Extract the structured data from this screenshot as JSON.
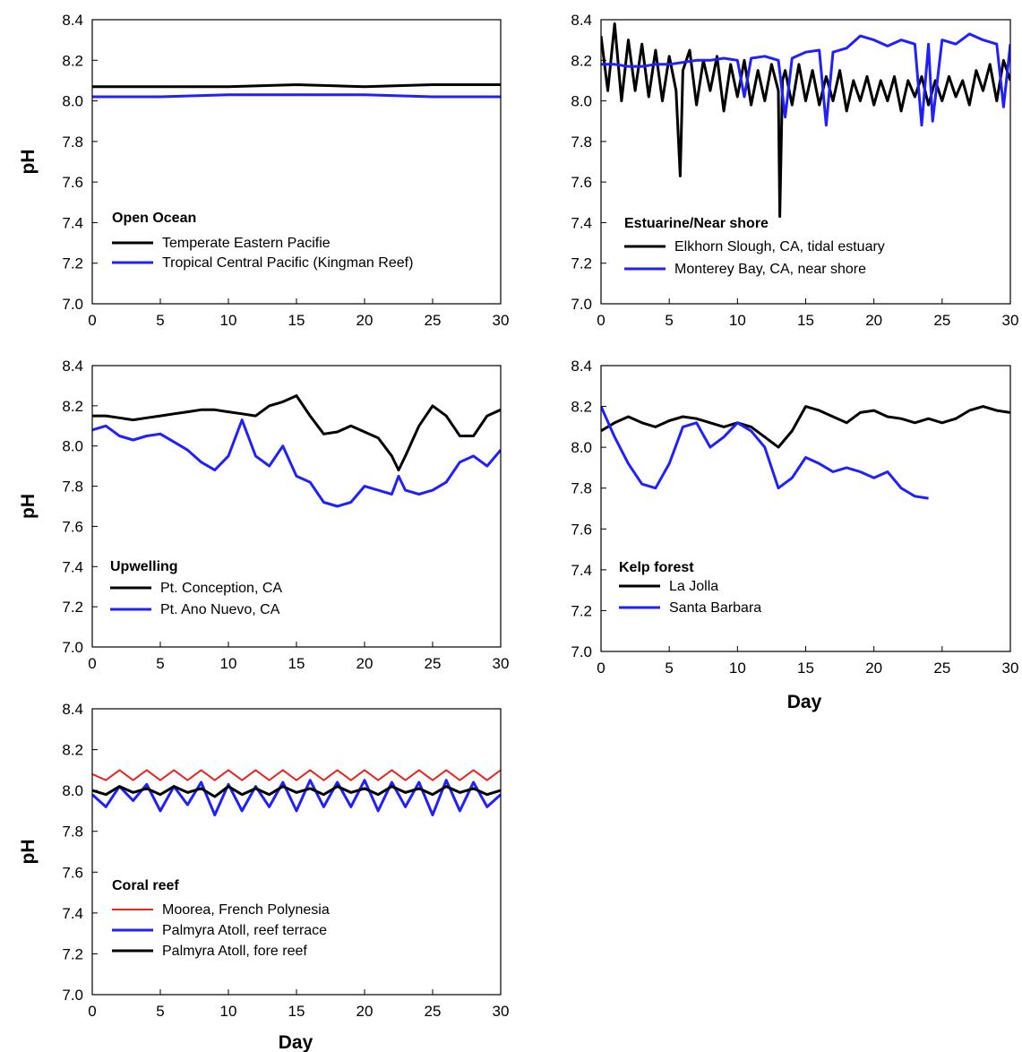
{
  "figure": {
    "y_axis_title": "pH",
    "x_axis_title": "Day",
    "colors": {
      "black": "#000000",
      "blue": "#1f1fff",
      "red": "#e8251f"
    }
  },
  "chart_data": [
    {
      "type": "line",
      "title": "Open Ocean",
      "ylabel": "pH",
      "xlabel": "",
      "xlim": [
        0,
        30
      ],
      "ylim": [
        7.0,
        8.4
      ],
      "xticks": [
        "0",
        "5",
        "10",
        "15",
        "20",
        "25",
        "30"
      ],
      "yticks": [
        "7.0",
        "7.2",
        "7.4",
        "7.6",
        "7.8",
        "8.0",
        "8.2",
        "8.4"
      ],
      "grid": false,
      "legend_position": "lower-left",
      "series": [
        {
          "name": "Temperate Eastern Pacifie",
          "color": "#000000",
          "x": [
            0,
            5,
            10,
            15,
            20,
            25,
            30
          ],
          "values": [
            8.07,
            8.07,
            8.07,
            8.08,
            8.07,
            8.08,
            8.08
          ]
        },
        {
          "name": "Tropical Central Pacific (Kingman Reef)",
          "color": "#1f1fff",
          "x": [
            0,
            5,
            10,
            15,
            20,
            25,
            30
          ],
          "values": [
            8.02,
            8.02,
            8.03,
            8.03,
            8.03,
            8.02,
            8.02
          ]
        }
      ]
    },
    {
      "type": "line",
      "title": "Estuarine/Near shore",
      "ylabel": "",
      "xlabel": "",
      "xlim": [
        0,
        30
      ],
      "ylim": [
        7.0,
        8.4
      ],
      "xticks": [
        "0",
        "5",
        "10",
        "15",
        "20",
        "25",
        "30"
      ],
      "yticks": [
        "7.0",
        "7.2",
        "7.4",
        "7.6",
        "7.8",
        "8.0",
        "8.2",
        "8.4"
      ],
      "grid": false,
      "legend_position": "lower-left",
      "series": [
        {
          "name": "Elkhorn Slough, CA, tidal estuary",
          "color": "#000000",
          "x": [
            0,
            0.5,
            1,
            1.5,
            2,
            2.5,
            3,
            3.5,
            4,
            4.5,
            5,
            5.5,
            5.8,
            6,
            6.5,
            7,
            7.5,
            8,
            8.5,
            9,
            9.5,
            10,
            10.5,
            11,
            11.5,
            12,
            12.5,
            13,
            13.1,
            13.3,
            13.5,
            14,
            14.5,
            15,
            15.5,
            16,
            16.5,
            17,
            17.5,
            18,
            18.5,
            19,
            19.5,
            20,
            20.5,
            21,
            21.5,
            22,
            22.5,
            23,
            23.5,
            24,
            24.5,
            25,
            25.5,
            26,
            26.5,
            27,
            27.5,
            28,
            28.5,
            29,
            29.5,
            30
          ],
          "values": [
            8.32,
            8.05,
            8.38,
            8.0,
            8.3,
            8.05,
            8.28,
            8.02,
            8.25,
            8.0,
            8.22,
            8.05,
            7.63,
            8.15,
            8.25,
            7.98,
            8.2,
            8.05,
            8.22,
            7.95,
            8.18,
            8.02,
            8.2,
            7.98,
            8.15,
            8.0,
            8.18,
            8.05,
            7.43,
            8.1,
            8.15,
            7.98,
            8.18,
            8.0,
            8.15,
            7.98,
            8.12,
            8.0,
            8.15,
            7.95,
            8.1,
            8.0,
            8.12,
            7.98,
            8.1,
            8.0,
            8.12,
            7.95,
            8.1,
            8.02,
            8.12,
            7.98,
            8.1,
            8.0,
            8.12,
            8.02,
            8.1,
            7.98,
            8.15,
            8.05,
            8.18,
            8.0,
            8.2,
            8.1
          ]
        },
        {
          "name": "Monterey Bay, CA, near shore",
          "color": "#1f1fff",
          "x": [
            0,
            1,
            2,
            3,
            4,
            5,
            6,
            7,
            8,
            9,
            10,
            10.5,
            11,
            12,
            13,
            13.5,
            14,
            15,
            16,
            16.5,
            17,
            18,
            19,
            20,
            21,
            22,
            23,
            23.5,
            24,
            24.3,
            25,
            26,
            27,
            28,
            29,
            29.5,
            30
          ],
          "values": [
            8.18,
            8.18,
            8.17,
            8.17,
            8.18,
            8.18,
            8.19,
            8.2,
            8.2,
            8.21,
            8.2,
            8.02,
            8.21,
            8.22,
            8.2,
            7.92,
            8.21,
            8.24,
            8.25,
            7.88,
            8.24,
            8.26,
            8.32,
            8.3,
            8.27,
            8.3,
            8.28,
            7.88,
            8.28,
            7.9,
            8.3,
            8.28,
            8.33,
            8.3,
            8.28,
            7.97,
            8.28
          ]
        }
      ]
    },
    {
      "type": "line",
      "title": "Upwelling",
      "ylabel": "pH",
      "xlabel": "",
      "xlim": [
        0,
        30
      ],
      "ylim": [
        7.0,
        8.4
      ],
      "xticks": [
        "0",
        "5",
        "10",
        "15",
        "20",
        "25",
        "30"
      ],
      "yticks": [
        "7.0",
        "7.2",
        "7.4",
        "7.6",
        "7.8",
        "8.0",
        "8.2",
        "8.4"
      ],
      "grid": false,
      "legend_position": "lower-left",
      "series": [
        {
          "name": "Pt. Conception, CA",
          "color": "#000000",
          "x": [
            0,
            1,
            2,
            3,
            4,
            5,
            6,
            7,
            8,
            9,
            10,
            11,
            12,
            13,
            14,
            15,
            16,
            17,
            18,
            19,
            20,
            21,
            22,
            22.5,
            23,
            24,
            25,
            26,
            27,
            28,
            29,
            30
          ],
          "values": [
            8.15,
            8.15,
            8.14,
            8.13,
            8.14,
            8.15,
            8.16,
            8.17,
            8.18,
            8.18,
            8.17,
            8.16,
            8.15,
            8.2,
            8.22,
            8.25,
            8.15,
            8.06,
            8.07,
            8.1,
            8.07,
            8.04,
            7.95,
            7.88,
            7.95,
            8.1,
            8.2,
            8.15,
            8.05,
            8.05,
            8.15,
            8.18
          ]
        },
        {
          "name": "Pt. Ano Nuevo, CA",
          "color": "#1f1fff",
          "x": [
            0,
            1,
            2,
            3,
            4,
            5,
            6,
            7,
            8,
            9,
            10,
            11,
            12,
            13,
            14,
            15,
            16,
            17,
            18,
            19,
            20,
            21,
            22,
            22.5,
            23,
            24,
            25,
            26,
            27,
            28,
            29,
            30
          ],
          "values": [
            8.08,
            8.1,
            8.05,
            8.03,
            8.05,
            8.06,
            8.02,
            7.98,
            7.92,
            7.88,
            7.95,
            8.13,
            7.95,
            7.9,
            8.0,
            7.85,
            7.82,
            7.72,
            7.7,
            7.72,
            7.8,
            7.78,
            7.76,
            7.85,
            7.78,
            7.76,
            7.78,
            7.82,
            7.92,
            7.95,
            7.9,
            7.98
          ]
        }
      ]
    },
    {
      "type": "line",
      "title": "Kelp forest",
      "ylabel": "",
      "xlabel": "Day",
      "xlim": [
        0,
        30
      ],
      "ylim": [
        7.0,
        8.4
      ],
      "xticks": [
        "0",
        "5",
        "10",
        "15",
        "20",
        "25",
        "30"
      ],
      "yticks": [
        "7.0",
        "7.2",
        "7.4",
        "7.6",
        "7.8",
        "8.0",
        "8.2",
        "8.4"
      ],
      "grid": false,
      "legend_position": "lower-left",
      "series": [
        {
          "name": "La Jolla",
          "color": "#000000",
          "x": [
            0,
            1,
            2,
            3,
            4,
            5,
            6,
            7,
            8,
            9,
            10,
            11,
            12,
            13,
            14,
            15,
            16,
            17,
            18,
            19,
            20,
            21,
            22,
            23,
            24,
            25,
            26,
            27,
            28,
            29,
            30
          ],
          "values": [
            8.08,
            8.12,
            8.15,
            8.12,
            8.1,
            8.13,
            8.15,
            8.14,
            8.12,
            8.1,
            8.12,
            8.1,
            8.05,
            8.0,
            8.08,
            8.2,
            8.18,
            8.15,
            8.12,
            8.17,
            8.18,
            8.15,
            8.14,
            8.12,
            8.14,
            8.12,
            8.14,
            8.18,
            8.2,
            8.18,
            8.17
          ]
        },
        {
          "name": "Santa Barbara",
          "color": "#1f1fff",
          "x": [
            0,
            1,
            2,
            3,
            4,
            5,
            6,
            7,
            8,
            9,
            10,
            11,
            12,
            13,
            14,
            15,
            16,
            17,
            18,
            19,
            20,
            21,
            22,
            23,
            24
          ],
          "values": [
            8.2,
            8.05,
            7.92,
            7.82,
            7.8,
            7.92,
            8.1,
            8.12,
            8.0,
            8.05,
            8.12,
            8.08,
            8.0,
            7.8,
            7.85,
            7.95,
            7.92,
            7.88,
            7.9,
            7.88,
            7.85,
            7.88,
            7.8,
            7.76,
            7.75
          ]
        }
      ]
    },
    {
      "type": "line",
      "title": "Coral reef",
      "ylabel": "pH",
      "xlabel": "Day",
      "xlim": [
        0,
        30
      ],
      "ylim": [
        7.0,
        8.4
      ],
      "xticks": [
        "0",
        "5",
        "10",
        "15",
        "20",
        "25",
        "30"
      ],
      "yticks": [
        "7.0",
        "7.2",
        "7.4",
        "7.6",
        "7.8",
        "8.0",
        "8.2",
        "8.4"
      ],
      "grid": false,
      "legend_position": "lower-left",
      "series": [
        {
          "name": "Moorea, French Polynesia",
          "color": "#e8251f",
          "x": [
            0,
            1,
            2,
            3,
            4,
            5,
            6,
            7,
            8,
            9,
            10,
            11,
            12,
            13,
            14,
            15,
            16,
            17,
            18,
            19,
            20,
            21,
            22,
            23,
            24,
            25,
            26,
            27,
            28,
            29,
            30
          ],
          "values": [
            8.08,
            8.05,
            8.1,
            8.05,
            8.1,
            8.05,
            8.1,
            8.05,
            8.1,
            8.05,
            8.1,
            8.05,
            8.1,
            8.05,
            8.1,
            8.05,
            8.1,
            8.05,
            8.1,
            8.05,
            8.1,
            8.05,
            8.1,
            8.05,
            8.1,
            8.05,
            8.1,
            8.05,
            8.1,
            8.05,
            8.1
          ]
        },
        {
          "name": "Palmyra Atoll, reef terrace",
          "color": "#1f1fff",
          "x": [
            0,
            1,
            2,
            3,
            4,
            5,
            6,
            7,
            8,
            9,
            10,
            11,
            12,
            13,
            14,
            15,
            16,
            17,
            18,
            19,
            20,
            21,
            22,
            23,
            24,
            25,
            26,
            27,
            28,
            29,
            30
          ],
          "values": [
            7.98,
            7.92,
            8.02,
            7.95,
            8.03,
            7.9,
            8.02,
            7.93,
            8.04,
            7.88,
            8.03,
            7.9,
            8.02,
            7.92,
            8.04,
            7.9,
            8.05,
            7.92,
            8.04,
            7.92,
            8.05,
            7.9,
            8.04,
            7.92,
            8.04,
            7.88,
            8.05,
            7.9,
            8.04,
            7.92,
            7.98
          ]
        },
        {
          "name": "Palmyra Atoll, fore reef",
          "color": "#000000",
          "x": [
            0,
            1,
            2,
            3,
            4,
            5,
            6,
            7,
            8,
            9,
            10,
            11,
            12,
            13,
            14,
            15,
            16,
            17,
            18,
            19,
            20,
            21,
            22,
            23,
            24,
            25,
            26,
            27,
            28,
            29,
            30
          ],
          "values": [
            8.0,
            7.98,
            8.02,
            7.99,
            8.01,
            7.98,
            8.02,
            7.99,
            8.01,
            7.97,
            8.02,
            7.98,
            8.01,
            7.98,
            8.02,
            7.99,
            8.01,
            7.98,
            8.02,
            7.99,
            8.01,
            7.98,
            8.02,
            7.99,
            8.01,
            7.98,
            8.02,
            7.99,
            8.01,
            7.98,
            8.0
          ]
        }
      ]
    }
  ]
}
